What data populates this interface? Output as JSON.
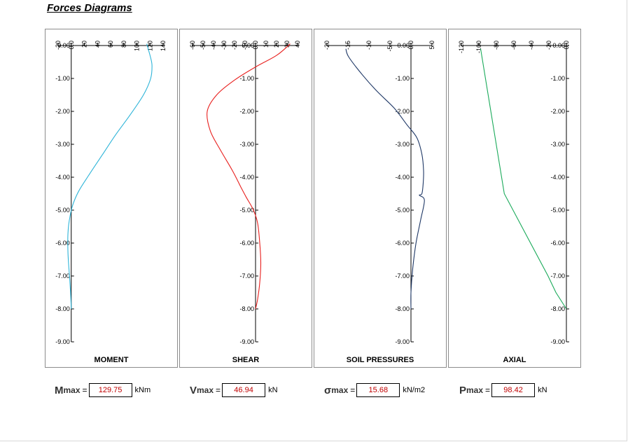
{
  "page": {
    "title": "Forces Diagrams"
  },
  "chart_data": [
    {
      "type": "line",
      "label": "MOMENT",
      "color": "#2eb4d8",
      "xlim": [
        -20,
        140
      ],
      "xticks": [
        "-20",
        "0.0",
        "20",
        "40",
        "60",
        "80",
        "100",
        "120",
        "140"
      ],
      "xtick_values": [
        -20,
        0,
        20,
        40,
        60,
        80,
        100,
        120,
        140
      ],
      "ylim": [
        -9,
        0
      ],
      "yticks": [
        "0.00",
        "-1.00",
        "-2.00",
        "-3.00",
        "-4.00",
        "-5.00",
        "-6.00",
        "-7.00",
        "-8.00",
        "-9.00"
      ],
      "grid": false,
      "points": [
        [
          115,
          0.05
        ],
        [
          120,
          -0.3
        ],
        [
          123,
          -0.6
        ],
        [
          121,
          -1.0
        ],
        [
          110,
          -1.5
        ],
        [
          90,
          -2.1
        ],
        [
          68,
          -2.7
        ],
        [
          48,
          -3.3
        ],
        [
          28,
          -3.9
        ],
        [
          12,
          -4.4
        ],
        [
          3,
          -4.8
        ],
        [
          -2,
          -5.2
        ],
        [
          -5,
          -5.7
        ],
        [
          -5,
          -6.3
        ],
        [
          -3,
          -6.9
        ],
        [
          -1,
          -7.5
        ],
        [
          0,
          -8.0
        ]
      ]
    },
    {
      "type": "line",
      "label": "SHEAR",
      "color": "#e8201e",
      "xlim": [
        -60,
        40
      ],
      "xticks": [
        "-60",
        "-50",
        "-40",
        "-30",
        "-20",
        "-10",
        "0.0",
        "10",
        "20",
        "30",
        "40"
      ],
      "xtick_values": [
        -60,
        -50,
        -40,
        -30,
        -20,
        -10,
        0,
        10,
        20,
        30,
        40
      ],
      "ylim": [
        -9,
        0
      ],
      "yticks": [
        "0.00",
        "-1.00",
        "-2.00",
        "-3.00",
        "-4.00",
        "-5.00",
        "-6.00",
        "-7.00",
        "-8.00",
        "-9.00"
      ],
      "grid": false,
      "points": [
        [
          33,
          0.05
        ],
        [
          20,
          -0.3
        ],
        [
          0,
          -0.65
        ],
        [
          -20,
          -1.05
        ],
        [
          -37,
          -1.5
        ],
        [
          -46,
          -2.0
        ],
        [
          -43,
          -2.6
        ],
        [
          -33,
          -3.2
        ],
        [
          -22,
          -3.8
        ],
        [
          -14,
          -4.3
        ],
        [
          -9,
          -4.6
        ],
        [
          -2,
          -5.0
        ],
        [
          2,
          -5.4
        ],
        [
          4,
          -6.0
        ],
        [
          5,
          -6.6
        ],
        [
          4,
          -7.2
        ],
        [
          2,
          -7.7
        ],
        [
          0,
          -8.0
        ]
      ]
    },
    {
      "type": "line",
      "label": "SOIL PRESSURES",
      "color": "#1f3866",
      "xlim": [
        -20,
        5
      ],
      "xticks": [
        "-20",
        "-15",
        "-10",
        "-5.0",
        "0.0",
        "5.0"
      ],
      "xtick_values": [
        -20,
        -15,
        -10,
        -5,
        0,
        5
      ],
      "ylim": [
        -9,
        0
      ],
      "yticks": [
        "0.00",
        "-1.00",
        "-2.00",
        "-3.00",
        "-4.00",
        "-5.00",
        "-6.00",
        "-7.00",
        "-8.00",
        "-9.00"
      ],
      "grid": false,
      "points": [
        [
          -15.5,
          -0.1
        ],
        [
          -14.8,
          -0.35
        ],
        [
          -11.5,
          -0.9
        ],
        [
          -8,
          -1.4
        ],
        [
          -4,
          -1.9
        ],
        [
          -1,
          -2.4
        ],
        [
          1.4,
          -2.8
        ],
        [
          2.6,
          -3.3
        ],
        [
          3.0,
          -3.8
        ],
        [
          2.9,
          -4.2
        ],
        [
          2.6,
          -4.5
        ],
        [
          2.0,
          -4.55
        ],
        [
          3.2,
          -4.7
        ],
        [
          2.3,
          -5.3
        ],
        [
          1.2,
          -6.0
        ],
        [
          0.4,
          -6.8
        ],
        [
          0,
          -7.5
        ],
        [
          0,
          -8.0
        ]
      ]
    },
    {
      "type": "line",
      "label": "AXIAL",
      "color": "#1aaa5a",
      "xlim": [
        -120,
        0
      ],
      "xticks": [
        "-120",
        "-100",
        "-80",
        "-60",
        "-40",
        "-20",
        "0.0"
      ],
      "xtick_values": [
        -120,
        -100,
        -80,
        -60,
        -40,
        -20,
        0
      ],
      "ylim": [
        -9,
        0
      ],
      "yticks": [
        "0.00",
        "-1.00",
        "-2.00",
        "-3.00",
        "-4.00",
        "-5.00",
        "-6.00",
        "-7.00",
        "-8.00",
        "-9.00"
      ],
      "grid": false,
      "points": [
        [
          -98,
          -0.1
        ],
        [
          -71,
          -4.5
        ],
        [
          -21,
          -7.0
        ],
        [
          -12,
          -7.5
        ],
        [
          0,
          -8.0
        ]
      ]
    }
  ],
  "summary": [
    {
      "symbol": "M",
      "sub": "max",
      "value": "129.75",
      "unit": "kNm"
    },
    {
      "symbol": "V",
      "sub": "max",
      "value": "46.94",
      "unit": "kN"
    },
    {
      "symbol": "σ",
      "sub": "max",
      "value": "15.68",
      "unit": "kN/m2"
    },
    {
      "symbol": "P",
      "sub": "max",
      "value": "98.42",
      "unit": "kN"
    }
  ]
}
